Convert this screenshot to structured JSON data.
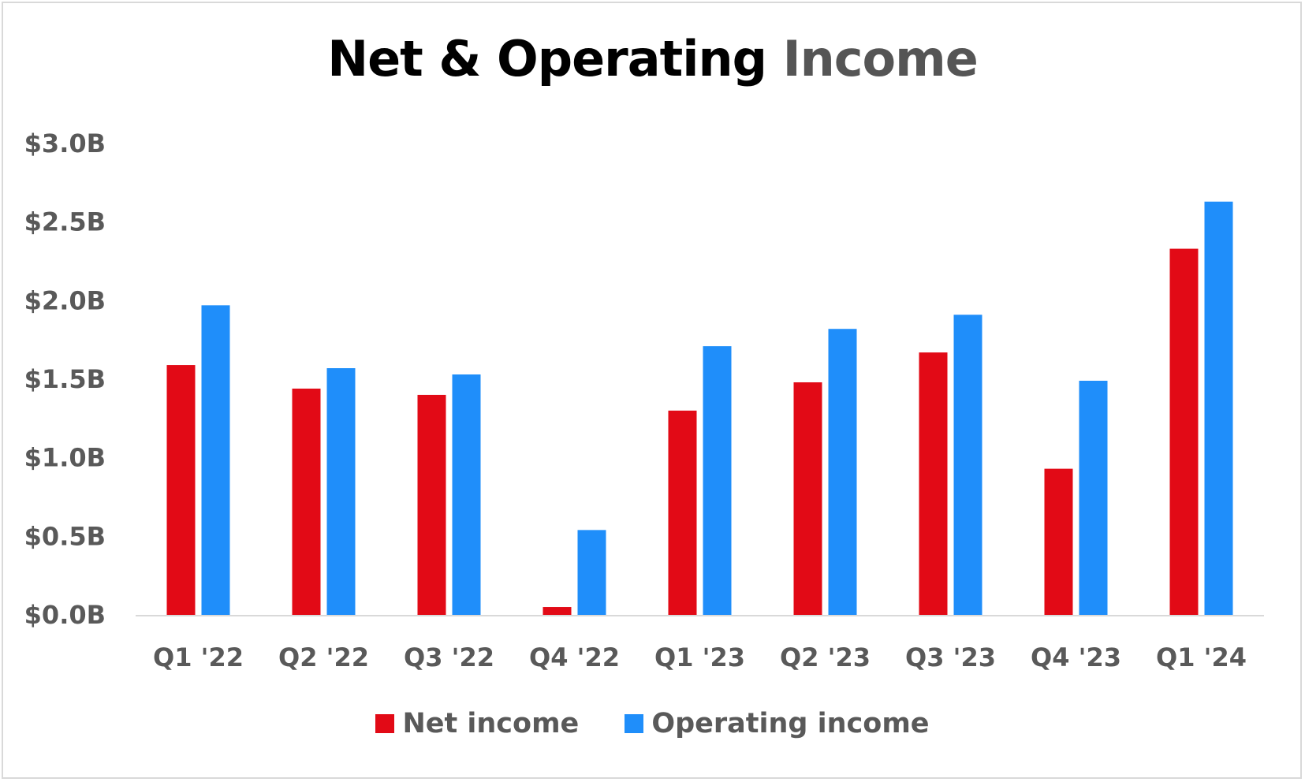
{
  "chart_data": {
    "type": "bar",
    "title_parts": [
      "Net & Operating",
      "Income"
    ],
    "categories": [
      "Q1 '22",
      "Q2 '22",
      "Q3 '22",
      "Q4 '22",
      "Q1 '23",
      "Q2 '23",
      "Q3 '23",
      "Q4 '23",
      "Q1 '24"
    ],
    "series": [
      {
        "name": "Net income",
        "color": "#e20a16",
        "values": [
          1.59,
          1.44,
          1.4,
          0.05,
          1.3,
          1.48,
          1.67,
          0.93,
          2.33
        ]
      },
      {
        "name": "Operating income",
        "color": "#1f8efa",
        "values": [
          1.97,
          1.57,
          1.53,
          0.54,
          1.71,
          1.82,
          1.91,
          1.49,
          2.63
        ]
      }
    ],
    "y_ticks": [
      "$0.0B",
      "$0.5B",
      "$1.0B",
      "$1.5B",
      "$2.0B",
      "$2.5B",
      "$3.0B"
    ],
    "ylim": [
      0,
      3.0
    ],
    "ylabel": "",
    "xlabel": "",
    "grid": false,
    "legend_position": "bottom"
  }
}
